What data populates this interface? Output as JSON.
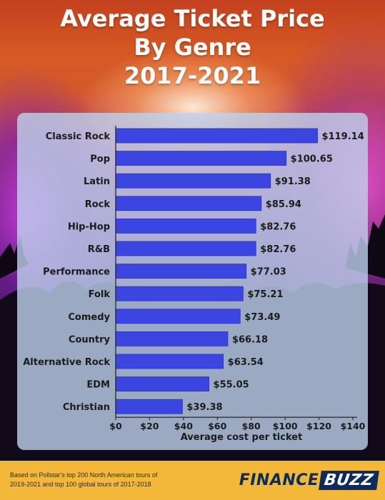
{
  "title": {
    "line1": "Average Ticket Price",
    "line2": "By Genre",
    "line3": "2017-2021"
  },
  "footer": {
    "source_line1": "Based on Pollstar's top 200 North American tours of",
    "source_line2": "2019-2021 and top 100 global tours of 2017-2018",
    "brand_part1": "FINANCE",
    "brand_part2": "BUZZ"
  },
  "colors": {
    "bar": "#3b45e0",
    "bar_edge": "#2a33c4",
    "panel": "#bed2ee",
    "footer": "#f3b83a",
    "brand": "#0b2c5c"
  },
  "chart_data": {
    "type": "bar",
    "orientation": "horizontal",
    "categories": [
      "Classic Rock",
      "Pop",
      "Latin",
      "Rock",
      "Hip-Hop",
      "R&B",
      "Performance",
      "Folk",
      "Comedy",
      "Country",
      "Alternative Rock",
      "EDM",
      "Christian"
    ],
    "values": [
      119.14,
      100.65,
      91.38,
      85.94,
      82.76,
      82.76,
      77.03,
      75.21,
      73.49,
      66.18,
      63.54,
      55.05,
      39.38
    ],
    "value_labels": [
      "$119.14",
      "$100.65",
      "$91.38",
      "$85.94",
      "$82.76",
      "$82.76",
      "$77.03",
      "$75.21",
      "$73.49",
      "$66.18",
      "$63.54",
      "$55.05",
      "$39.38"
    ],
    "xlabel": "Average cost per ticket",
    "xlim": [
      0,
      140
    ],
    "xticks": [
      0,
      20,
      40,
      60,
      80,
      100,
      120,
      140
    ],
    "xtick_labels": [
      "$0",
      "$20",
      "$40",
      "$60",
      "$80",
      "$100",
      "$120",
      "$140"
    ],
    "grid": false
  }
}
